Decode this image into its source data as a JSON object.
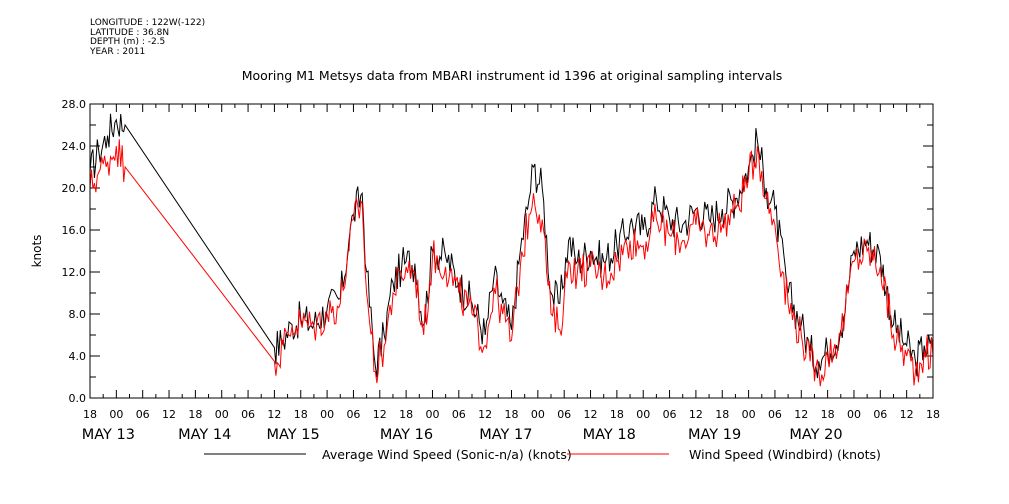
{
  "header": {
    "longitude": "LONGITUDE : 122W(-122)",
    "latitude": "LATITUDE : 36.8N",
    "depth": "DEPTH (m) : -2.5",
    "year": "YEAR : 2011"
  },
  "chart_data": {
    "type": "line",
    "title": "Mooring M1 Metsys data from MBARI instrument id 1396 at original sampling intervals",
    "ylabel": "knots",
    "ylim": [
      0,
      28
    ],
    "y_ticks": [
      "0.0",
      "4.0",
      "8.0",
      "12.0",
      "16.0",
      "20.0",
      "24.0",
      "28.0"
    ],
    "x_hour_ticks": [
      "18",
      "00",
      "06",
      "12",
      "18",
      "00",
      "06",
      "12",
      "18",
      "00",
      "06",
      "12",
      "18",
      "00",
      "06",
      "12",
      "18",
      "00",
      "06",
      "12",
      "18",
      "00",
      "06",
      "12",
      "18",
      "00",
      "06",
      "12",
      "18",
      "00",
      "06",
      "12",
      "18"
    ],
    "x_day_labels": [
      "MAY 13",
      "MAY 14",
      "MAY 15",
      "MAY 16",
      "MAY 17",
      "MAY 18",
      "MAY 19",
      "MAY 20"
    ],
    "x_start": "2011-05-12 18:00",
    "x_end": "2011-05-20 18:00",
    "colors": {
      "sonic": "#000000",
      "windbird": "#ff0000"
    },
    "series": [
      {
        "name": "Average Wind Speed (Sonic-n/a) (knots)",
        "x": [
          "2011-05-12 18:00",
          "2011-05-12 20:00",
          "2011-05-12 22:00",
          "2011-05-13 00:00",
          "2011-05-13 02:00",
          "2011-05-14 12:00",
          "2011-05-14 14:00",
          "2011-05-14 16:00",
          "2011-05-14 18:00",
          "2011-05-14 21:00",
          "2011-05-15 00:00",
          "2011-05-15 03:00",
          "2011-05-15 05:00",
          "2011-05-15 06:00",
          "2011-05-15 08:00",
          "2011-05-15 09:00",
          "2011-05-15 11:00",
          "2011-05-15 13:00",
          "2011-05-15 15:00",
          "2011-05-15 17:00",
          "2011-05-15 18:00",
          "2011-05-15 20:00",
          "2011-05-15 22:00",
          "2011-05-16 00:00",
          "2011-05-16 03:00",
          "2011-05-16 06:00",
          "2011-05-16 09:00",
          "2011-05-16 12:00",
          "2011-05-16 14:00",
          "2011-05-16 16:00",
          "2011-05-16 18:00",
          "2011-05-16 20:00",
          "2011-05-16 22:00",
          "2011-05-16 23:00",
          "2011-05-17 01:00",
          "2011-05-17 03:00",
          "2011-05-17 05:00",
          "2011-05-17 07:00",
          "2011-05-17 09:00",
          "2011-05-17 12:00",
          "2011-05-17 15:00",
          "2011-05-17 18:00",
          "2011-05-17 21:00",
          "2011-05-18 00:00",
          "2011-05-18 03:00",
          "2011-05-18 06:00",
          "2011-05-18 09:00",
          "2011-05-18 12:00",
          "2011-05-18 15:00",
          "2011-05-18 18:00",
          "2011-05-18 21:00",
          "2011-05-19 00:00",
          "2011-05-19 02:00",
          "2011-05-19 04:00",
          "2011-05-19 06:00",
          "2011-05-19 09:00",
          "2011-05-19 12:00",
          "2011-05-19 14:00",
          "2011-05-19 16:00",
          "2011-05-19 18:00",
          "2011-05-19 21:00",
          "2011-05-20 00:00",
          "2011-05-20 03:00",
          "2011-05-20 06:00",
          "2011-05-20 09:00",
          "2011-05-20 12:00",
          "2011-05-20 14:00",
          "2011-05-20 16:00",
          "2011-05-20 18:00"
        ],
        "values": [
          21.5,
          23.5,
          25,
          26.5,
          26,
          4.8,
          5.5,
          7,
          7.5,
          7,
          8.5,
          9.5,
          15,
          17.5,
          19.5,
          12,
          3,
          6,
          11,
          12.5,
          13,
          12.8,
          7,
          14,
          13.5,
          11,
          9,
          6,
          11.5,
          9,
          6.5,
          14,
          19,
          22,
          20,
          10,
          9,
          15,
          13,
          14,
          13,
          14.5,
          16.5,
          16,
          19,
          17,
          16.5,
          18,
          17,
          18,
          19,
          22,
          24.5,
          20,
          18,
          10,
          7,
          4.5,
          3.5,
          4.5,
          6.5,
          14,
          15,
          13.5,
          7,
          5,
          3.5,
          5,
          4.5
        ]
      },
      {
        "name": "Wind Speed (Windbird) (knots)",
        "x": [
          "2011-05-12 18:00",
          "2011-05-12 20:00",
          "2011-05-12 22:00",
          "2011-05-13 00:00",
          "2011-05-13 02:00",
          "2011-05-14 12:00",
          "2011-05-14 14:00",
          "2011-05-14 16:00",
          "2011-05-14 18:00",
          "2011-05-14 21:00",
          "2011-05-15 00:00",
          "2011-05-15 03:00",
          "2011-05-15 05:00",
          "2011-05-15 06:00",
          "2011-05-15 08:00",
          "2011-05-15 09:00",
          "2011-05-15 11:00",
          "2011-05-15 13:00",
          "2011-05-15 15:00",
          "2011-05-15 17:00",
          "2011-05-15 18:00",
          "2011-05-15 20:00",
          "2011-05-15 22:00",
          "2011-05-16 00:00",
          "2011-05-16 03:00",
          "2011-05-16 06:00",
          "2011-05-16 09:00",
          "2011-05-16 12:00",
          "2011-05-16 14:00",
          "2011-05-16 16:00",
          "2011-05-16 18:00",
          "2011-05-16 20:00",
          "2011-05-16 22:00",
          "2011-05-16 23:00",
          "2011-05-17 01:00",
          "2011-05-17 03:00",
          "2011-05-17 05:00",
          "2011-05-17 07:00",
          "2011-05-17 09:00",
          "2011-05-17 12:00",
          "2011-05-17 15:00",
          "2011-05-17 18:00",
          "2011-05-17 21:00",
          "2011-05-18 00:00",
          "2011-05-18 03:00",
          "2011-05-18 06:00",
          "2011-05-18 09:00",
          "2011-05-18 12:00",
          "2011-05-18 15:00",
          "2011-05-18 18:00",
          "2011-05-18 21:00",
          "2011-05-19 00:00",
          "2011-05-19 02:00",
          "2011-05-19 04:00",
          "2011-05-19 06:00",
          "2011-05-19 09:00",
          "2011-05-19 12:00",
          "2011-05-19 14:00",
          "2011-05-19 16:00",
          "2011-05-19 18:00",
          "2011-05-19 21:00",
          "2011-05-20 00:00",
          "2011-05-20 03:00",
          "2011-05-20 06:00",
          "2011-05-20 09:00",
          "2011-05-20 12:00",
          "2011-05-20 14:00",
          "2011-05-20 16:00",
          "2011-05-20 18:00"
        ],
        "values": [
          20,
          21.5,
          22.5,
          24,
          22,
          3.5,
          5,
          6.8,
          7.2,
          6.8,
          8,
          9,
          14,
          17,
          18.5,
          10,
          2.5,
          5,
          10,
          11.5,
          12.5,
          12,
          6,
          13.5,
          12.5,
          10,
          8,
          5,
          10.5,
          8,
          5.5,
          12.5,
          17.5,
          19.5,
          17,
          8,
          6.5,
          13,
          12,
          12.5,
          11.5,
          13,
          15,
          14.5,
          17,
          15.5,
          15,
          16.5,
          15.5,
          16.5,
          18,
          21,
          24,
          19,
          16.5,
          9,
          6,
          3.5,
          2.5,
          4,
          6,
          13,
          14,
          12.5,
          6,
          4,
          2.5,
          4.5,
          4
        ]
      }
    ]
  }
}
